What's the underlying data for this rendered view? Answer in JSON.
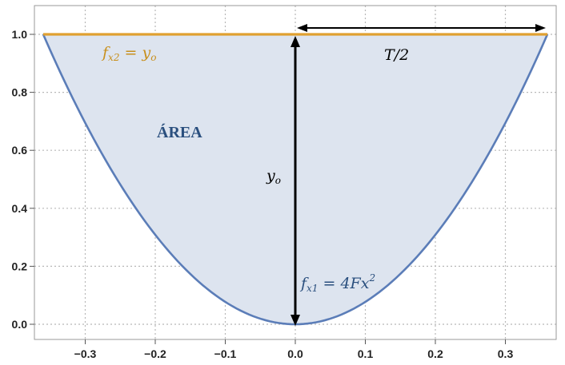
{
  "chart_data": {
    "type": "area",
    "title": "",
    "xlabel": "",
    "ylabel": "",
    "xlim": [
      -0.36,
      0.36
    ],
    "ylim": [
      0,
      1.0
    ],
    "grid": true,
    "x_ticks": [
      "−0.3",
      "−0.2",
      "−0.1",
      "0.0",
      "0.1",
      "0.2",
      "0.3"
    ],
    "y_ticks": [
      "0.0",
      "0.2",
      "0.4",
      "0.6",
      "0.8",
      "1.0"
    ],
    "series": [
      {
        "x": [
          -0.36,
          -0.3,
          -0.2,
          -0.1,
          0.0,
          0.1,
          0.2,
          0.3,
          0.36
        ],
        "y": [
          1.0,
          0.694,
          0.309,
          0.077,
          0.0,
          0.077,
          0.309,
          0.694,
          1.0
        ]
      },
      {
        "x": [
          -0.36,
          0.36
        ],
        "y": [
          1.0,
          1.0
        ]
      }
    ],
    "colors": {
      "curve": "#5b7db8",
      "fill": "#dde4ef",
      "line": "#e0a030",
      "label_orange": "#c8901e",
      "label_blue": "#2a4f7e",
      "arrow": "#000000",
      "grid": "#b8b8b8"
    },
    "annotations": {
      "fx2": {
        "f": "f",
        "sub": "x2",
        "rest": " = y",
        "rest_sub": "o"
      },
      "half_width": "T/2",
      "height": {
        "main": "y",
        "sub": "o"
      },
      "area": "ÁREA",
      "fx1": {
        "f": "f",
        "sub": "x1",
        "rest": " = 4Fx",
        "sup": "2"
      }
    }
  }
}
